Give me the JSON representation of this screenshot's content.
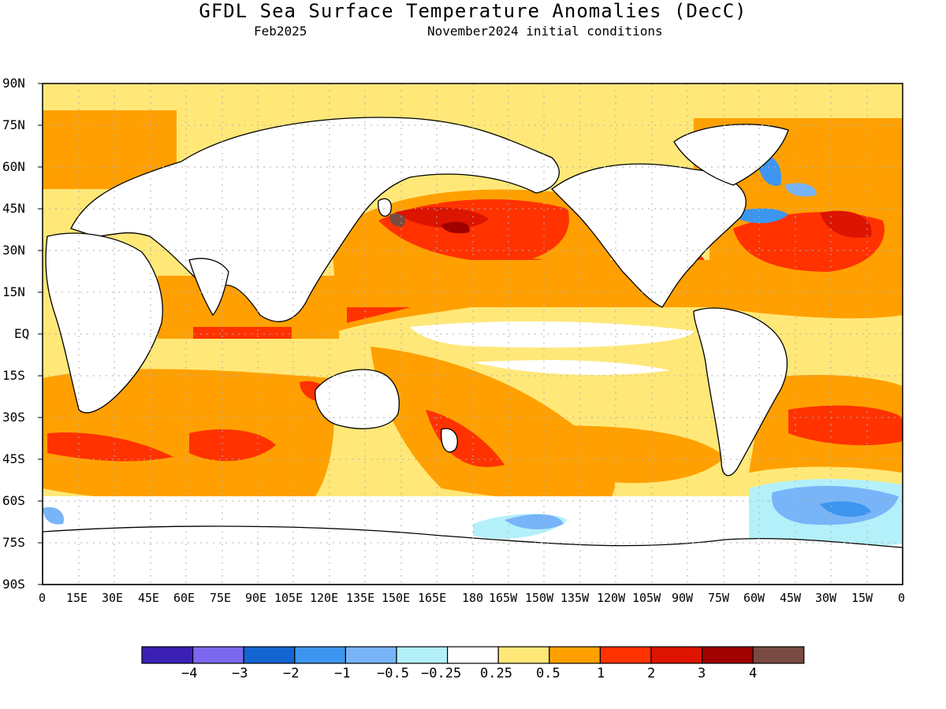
{
  "title": "GFDL Sea Surface Temperature Anomalies (DecC)",
  "subtitle_left": "Feb2025",
  "subtitle_right": "November2024 initial conditions",
  "lat_labels": [
    "90N",
    "75N",
    "60N",
    "45N",
    "30N",
    "15N",
    "EQ",
    "15S",
    "30S",
    "45S",
    "60S",
    "75S",
    "90S"
  ],
  "lon_labels": [
    "0",
    "15E",
    "30E",
    "45E",
    "60E",
    "75E",
    "90E",
    "105E",
    "120E",
    "135E",
    "150E",
    "165E",
    "180",
    "165W",
    "150W",
    "135W",
    "120W",
    "105W",
    "90W",
    "75W",
    "60W",
    "45W",
    "30W",
    "15W",
    "0"
  ],
  "colorbar": {
    "colors": [
      "#3b20b4",
      "#7b68ee",
      "#1464d2",
      "#3c96f0",
      "#78b4f8",
      "#b4f0fa",
      "#ffffff",
      "#ffe878",
      "#ffa000",
      "#ff3200",
      "#dc1400",
      "#a00000",
      "#784b41"
    ],
    "labels": [
      "-4",
      "-3",
      "-2",
      "-1",
      "-0.5",
      "-0.25",
      "0.25",
      "0.5",
      "1",
      "2",
      "3",
      "4"
    ]
  }
}
